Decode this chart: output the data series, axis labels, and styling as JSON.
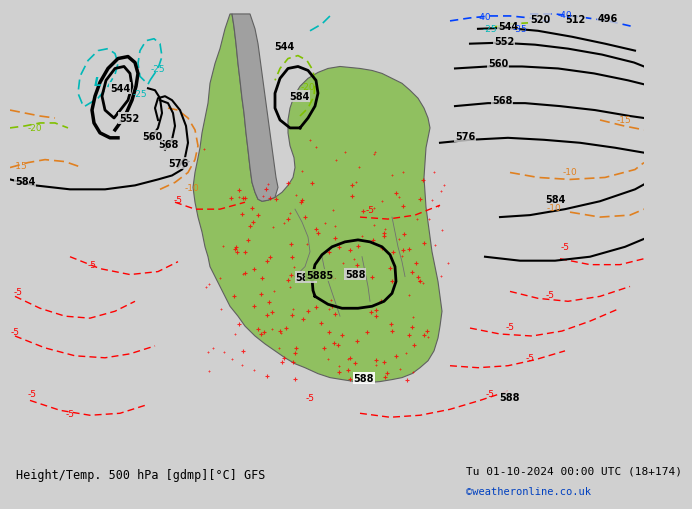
{
  "title_left": "Height/Temp. 500 hPa [gdmp][°C] GFS",
  "title_right": "Tu 01-10-2024 00:00 UTC (18+174)",
  "watermark": "©weatheronline.co.uk",
  "bg_color": "#d0d0d0",
  "land_color": "#b8b8b8",
  "sa_color": "#90c060",
  "bottom_bar_color": "#e8e8e8",
  "bottom_bar_height": 0.09
}
